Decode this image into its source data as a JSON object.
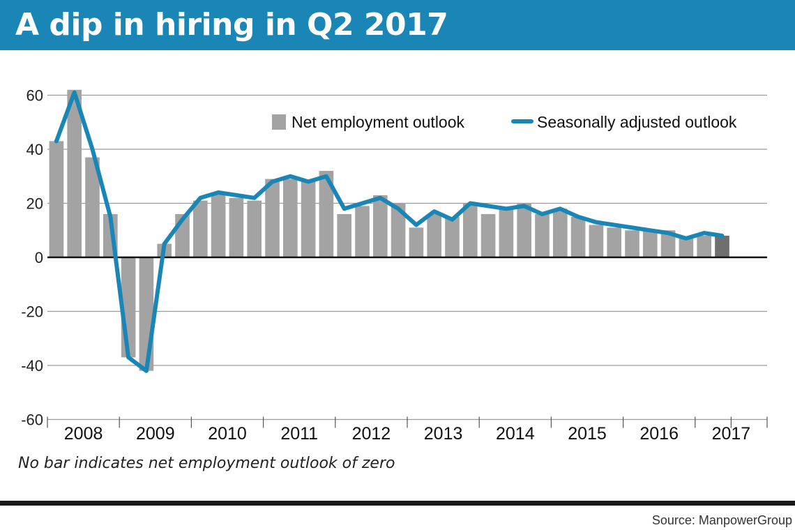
{
  "title": "A dip in hiring in Q2 2017",
  "note": "No bar indicates net employment outlook of zero",
  "source": "Source: ManpowerGroup",
  "colors": {
    "title_band": "#1a86b5",
    "bar": "#a3a3a3",
    "bar_latest": "#6f6f6f",
    "line": "#1a86b5",
    "grid": "#9a9a9a"
  },
  "chart_data": {
    "type": "bar",
    "ylim": [
      -60,
      60
    ],
    "yticks": [
      60,
      40,
      20,
      0,
      -20,
      -40,
      -60
    ],
    "grid": true,
    "legend_position": "top-right",
    "legend": [
      "Net employment outlook",
      "Seasonally adjusted outlook"
    ],
    "years": [
      "2008",
      "2009",
      "2010",
      "2011",
      "2012",
      "2013",
      "2014",
      "2015",
      "2016",
      "2017"
    ],
    "series": [
      {
        "name": "Net employment outlook",
        "type": "bar",
        "values": [
          43,
          62,
          37,
          16,
          -37,
          -42,
          5,
          16,
          21,
          24,
          22,
          21,
          29,
          29,
          28,
          32,
          16,
          19,
          23,
          20,
          11,
          16,
          15,
          20,
          16,
          18,
          20,
          16,
          18,
          15,
          12,
          11,
          10,
          10,
          10,
          7,
          8,
          8
        ]
      },
      {
        "name": "Seasonally adjusted outlook",
        "type": "line",
        "values": [
          43,
          61,
          40,
          15,
          -37,
          -42,
          5,
          14,
          22,
          24,
          23,
          22,
          28,
          30,
          28,
          30,
          18,
          20,
          22,
          18,
          12,
          17,
          14,
          20,
          19,
          18,
          19,
          16,
          18,
          15,
          13,
          12,
          11,
          10,
          9,
          7,
          9,
          8
        ]
      }
    ]
  }
}
